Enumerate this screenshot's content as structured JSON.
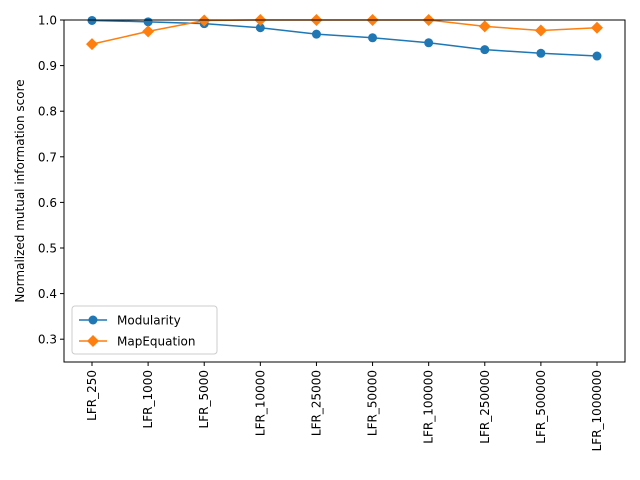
{
  "chart_data": {
    "type": "line",
    "title": "",
    "xlabel": "",
    "ylabel": "Normalized mutual information score",
    "categories": [
      "LFR_250",
      "LFR_1000",
      "LFR_5000",
      "LFR_10000",
      "LFR_25000",
      "LFR_50000",
      "LFR_100000",
      "LFR_250000",
      "LFR_500000",
      "LFR_1000000"
    ],
    "ylim": [
      0.25,
      1.0
    ],
    "yticks": [
      "0.3",
      "0.4",
      "0.5",
      "0.6",
      "0.7",
      "0.8",
      "0.9",
      "1.0"
    ],
    "grid": false,
    "legend_position": "lower-left",
    "series": [
      {
        "name": "Modularity",
        "color": "#1f77b4",
        "marker": "circle",
        "values": [
          0.999,
          0.996,
          0.992,
          0.983,
          0.969,
          0.961,
          0.95,
          0.935,
          0.927,
          0.921
        ]
      },
      {
        "name": "MapEquation",
        "color": "#ff7f0e",
        "marker": "diamond",
        "values": [
          0.947,
          0.975,
          0.999,
          1.0,
          1.0,
          1.0,
          1.0,
          0.986,
          0.977,
          0.983
        ]
      }
    ]
  }
}
